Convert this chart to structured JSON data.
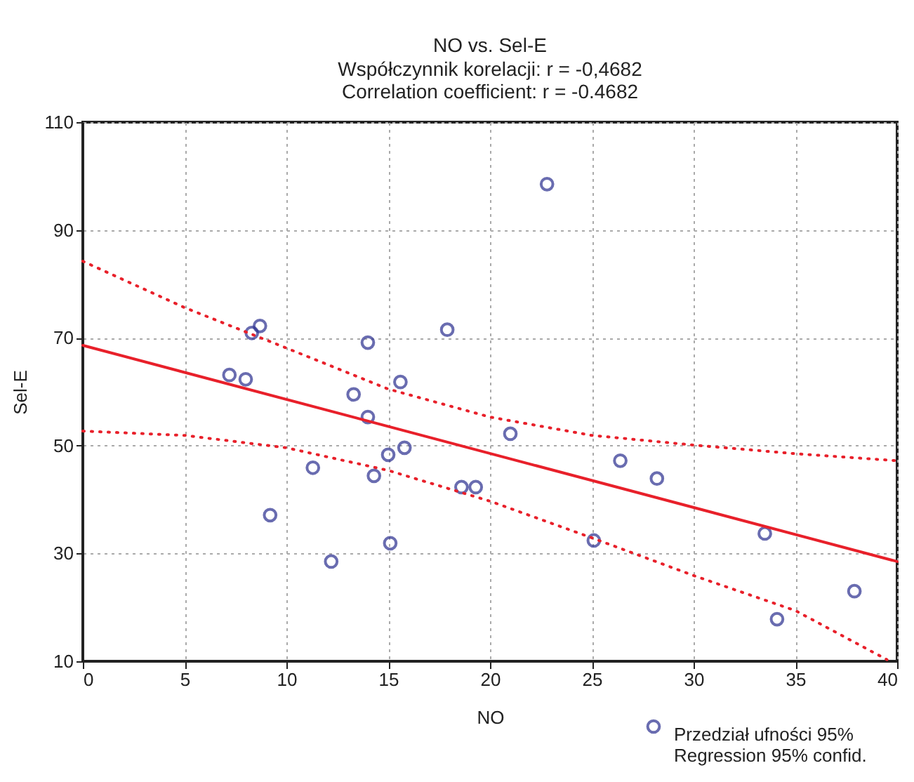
{
  "chart_data": {
    "type": "scatter",
    "title": "NO vs. Sel-E",
    "subtitle": "Współczynnik korelacji: r = -0,4682\nCorrelation coefficient: r = -0.4682",
    "xlabel": "NO",
    "ylabel": "Sel-E",
    "xlim": [
      0,
      40
    ],
    "xticks": [
      0,
      5,
      10,
      15,
      20,
      25,
      30,
      35,
      40
    ],
    "ylim": [
      10,
      110
    ],
    "yticks": [
      10,
      30,
      50,
      70,
      90,
      110
    ],
    "grid": true,
    "legend": "bottom right",
    "series": [
      {
        "name": "Przedział ufności 95%\nRegression 95% confid.",
        "color": "#2b2f8f",
        "marker": "circle",
        "x": [
          7.2,
          8.0,
          8.3,
          8.7,
          9.2,
          11.3,
          12.2,
          13.3,
          14.0,
          14.0,
          14.3,
          15.0,
          15.1,
          15.6,
          15.8,
          17.9,
          18.6,
          19.3,
          21.0,
          22.8,
          25.1,
          26.4,
          28.2,
          33.5,
          34.1,
          37.9
        ],
        "values": [
          63.1,
          62.3,
          70.9,
          72.2,
          37.1,
          45.9,
          28.5,
          59.5,
          69.1,
          55.3,
          44.4,
          48.3,
          31.9,
          61.8,
          49.6,
          71.5,
          42.3,
          42.3,
          52.2,
          98.5,
          32.4,
          47.2,
          43.9,
          33.7,
          17.8,
          23.0
        ]
      },
      {
        "type": "line",
        "color": "#e8202a",
        "line_style": "solid",
        "marker": "none",
        "x": [
          0,
          40
        ],
        "values": [
          68.6,
          28.5
        ]
      },
      {
        "type": "line",
        "color": "#e8202a",
        "line_style": "dotted",
        "x": [
          0,
          5,
          10,
          15,
          20,
          25,
          30,
          35,
          40
        ],
        "marker": "none",
        "values": [
          84.2,
          75.6,
          68.1,
          60.5,
          55.3,
          51.9,
          50.1,
          48.5,
          47.2
        ]
      },
      {
        "type": "line",
        "color": "#e8202a",
        "line_style": "dotted",
        "x": [
          0,
          5,
          10,
          15,
          20,
          25,
          30,
          35,
          39.5
        ],
        "marker": "none",
        "values": [
          52.7,
          51.9,
          49.6,
          45.4,
          39.7,
          32.9,
          25.9,
          19.4,
          10.3
        ]
      }
    ]
  }
}
